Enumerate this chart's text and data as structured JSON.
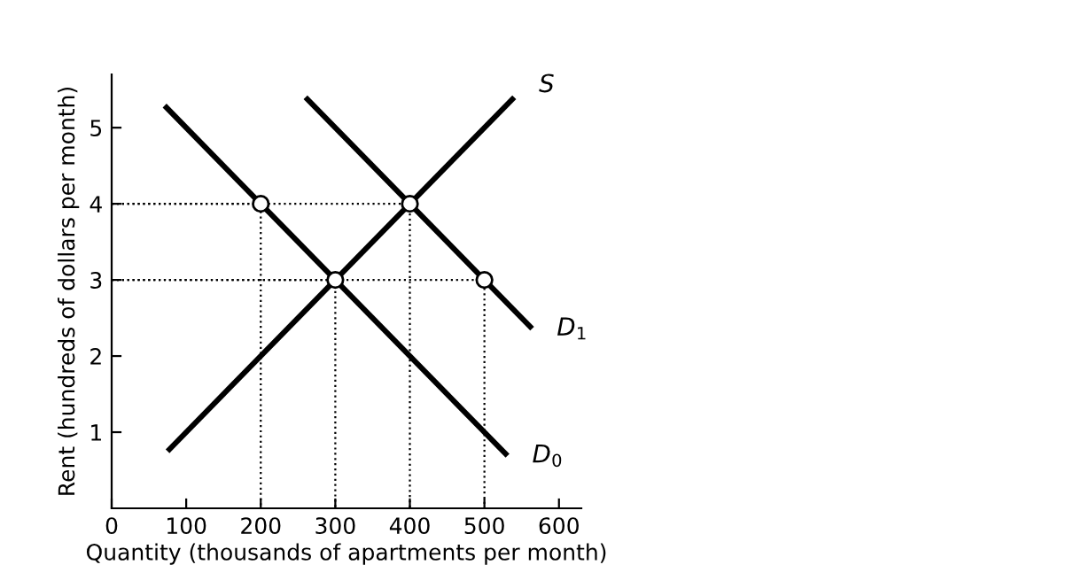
{
  "chart_data": {
    "type": "line",
    "xlabel": "Quantity (thousands of apartments per month)",
    "ylabel": "Rent (hundreds of dollars per month)",
    "xlim": [
      0,
      630
    ],
    "ylim": [
      0,
      5.7
    ],
    "xticks": [
      0,
      100,
      200,
      300,
      400,
      500,
      600
    ],
    "yticks": [
      1,
      2,
      3,
      4,
      5
    ],
    "grid": false,
    "legend": false,
    "series": [
      {
        "name": "S",
        "color": "#000000",
        "x": [
          75,
          540
        ],
        "values": [
          0.75,
          5.4
        ]
      },
      {
        "name": "D$_{1}$",
        "color": "#000000",
        "x": [
          260,
          564
        ],
        "values": [
          5.4,
          2.36
        ]
      },
      {
        "name": "D$_{0}$",
        "color": "#000000",
        "x": [
          71,
          531
        ],
        "values": [
          5.29,
          0.69
        ]
      },
      {
        "color": "#000000",
        "line_style": "dotted",
        "x": [
          0,
          200,
          200
        ],
        "values": [
          4,
          4,
          0
        ]
      },
      {
        "color": "#000000",
        "line_style": "dotted",
        "x": [
          0,
          300,
          300
        ],
        "values": [
          3,
          3,
          0
        ]
      },
      {
        "color": "#000000",
        "line_style": "dotted",
        "x": [
          0,
          400,
          400
        ],
        "values": [
          4,
          4,
          0
        ]
      },
      {
        "color": "#000000",
        "line_style": "dotted",
        "x": [
          0,
          500,
          500
        ],
        "values": [
          3,
          3,
          0
        ]
      },
      {
        "type": "scatter",
        "color": "#000000",
        "marker": "circle",
        "x": [
          200,
          300,
          400,
          500
        ],
        "values": [
          4,
          3,
          4,
          3
        ]
      }
    ]
  }
}
